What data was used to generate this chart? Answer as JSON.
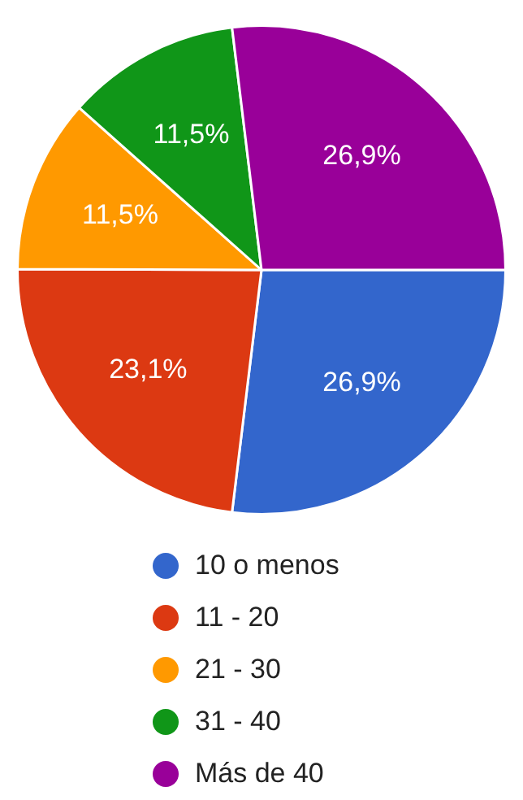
{
  "chart_data": {
    "type": "pie",
    "categories": [
      "10 o menos",
      "11 - 20",
      "21 - 30",
      "31 - 40",
      "Más de 40"
    ],
    "values": [
      26.9,
      23.1,
      11.5,
      11.5,
      26.9
    ],
    "colors": [
      "#3366cc",
      "#dc3912",
      "#ff9900",
      "#109618",
      "#990099"
    ],
    "value_labels": [
      "26,9%",
      "23,1%",
      "11,5%",
      "11,5%",
      "26,9%"
    ],
    "legend": "bottom"
  }
}
